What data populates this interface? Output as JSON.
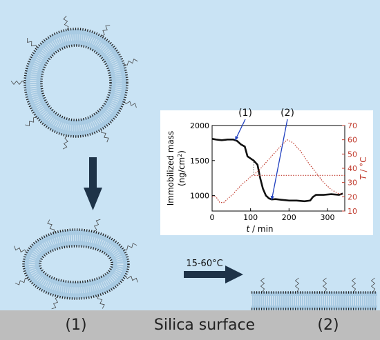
{
  "labels": {
    "state1": "(1)",
    "state2": "(2)",
    "surface": "Silica surface",
    "temperature_step": "15-60°C"
  },
  "colors": {
    "background": "#c9e3f4",
    "surface": "#bdbdbd",
    "vesicle_fill": "#a9cbe3",
    "bead": "#1f1f1f",
    "arrow": "#1e3348",
    "mass": "#111111",
    "temperature": "#c0392b",
    "callout": "#1f3fbf"
  },
  "chart_data": {
    "type": "line",
    "xlabel": "t / min",
    "ylabel": "Immobilized mass (ng/cm²)",
    "y2label": "T / °C",
    "xlim": [
      0,
      345
    ],
    "ylim": [
      780,
      2000
    ],
    "y2lim": [
      10,
      70
    ],
    "xticks": [
      0,
      100,
      200,
      300
    ],
    "yticks": [
      1000,
      1500,
      2000
    ],
    "y2ticks": [
      10,
      20,
      30,
      40,
      50,
      60,
      70
    ],
    "annotations": [
      {
        "label": "(1)",
        "x": 60,
        "y": 1790
      },
      {
        "label": "(2)",
        "x": 155,
        "y": 940
      }
    ],
    "series": [
      {
        "name": "",
        "axis": "left",
        "style": "solid",
        "x": [
          0,
          10,
          25,
          40,
          55,
          65,
          75,
          85,
          92,
          100,
          108,
          118,
          125,
          132,
          140,
          148,
          155,
          165,
          180,
          200,
          220,
          240,
          255,
          262,
          270,
          290,
          310,
          330,
          340
        ],
        "y": [
          1810,
          1800,
          1790,
          1800,
          1800,
          1780,
          1730,
          1700,
          1560,
          1530,
          1500,
          1440,
          1250,
          1100,
          1000,
          960,
          945,
          950,
          940,
          930,
          930,
          920,
          930,
          980,
          1010,
          1010,
          1020,
          1010,
          1030
        ]
      },
      {
        "name": "",
        "axis": "right",
        "style": "dotted",
        "x": [
          0,
          10,
          20,
          30,
          55,
          75,
          100,
          120,
          140,
          160,
          180,
          195,
          210,
          230,
          250,
          270,
          290,
          310,
          330,
          340
        ],
        "y": [
          20,
          20,
          16,
          16,
          22,
          28,
          34,
          38,
          44,
          50,
          56,
          60,
          58,
          52,
          44,
          37,
          30,
          25,
          22,
          22
        ]
      },
      {
        "name": "",
        "axis": "right",
        "style": "dotted",
        "x": [
          110,
          345
        ],
        "y": [
          35,
          35
        ]
      }
    ]
  }
}
